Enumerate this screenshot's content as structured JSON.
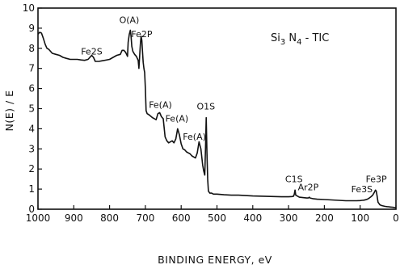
{
  "chart_data": {
    "type": "line",
    "title": "",
    "xlabel": "BINDING ENERGY, eV",
    "ylabel": "N(E) / E",
    "x_reversed": true,
    "xlim": [
      1000,
      0
    ],
    "ylim": [
      0,
      10
    ],
    "x_ticks": [
      1000,
      900,
      800,
      700,
      600,
      500,
      400,
      300,
      200,
      100,
      0
    ],
    "y_ticks": [
      0,
      1,
      2,
      3,
      4,
      5,
      6,
      7,
      8,
      9,
      10
    ],
    "grid": false,
    "sample_label": {
      "main": "Si",
      "sub1": "3",
      "mid": " N",
      "sub2": "4",
      "suffix": " - TIC"
    },
    "annotations": [
      {
        "text": "O(A)",
        "x": 745,
        "y": 9.25
      },
      {
        "text": "Fe2P",
        "x": 710,
        "y": 8.55
      },
      {
        "text": "Fe2S",
        "x": 850,
        "y": 7.7
      },
      {
        "text": "Fe(A)",
        "x": 658,
        "y": 5.05
      },
      {
        "text": "Fe(A)",
        "x": 612,
        "y": 4.35
      },
      {
        "text": "Fe(A)",
        "x": 563,
        "y": 3.45
      },
      {
        "text": "O1S",
        "x": 531,
        "y": 4.95
      },
      {
        "text": "C1S",
        "x": 285,
        "y": 1.35
      },
      {
        "text": "Ar2P",
        "x": 245,
        "y": 0.95
      },
      {
        "text": "Fe3S",
        "x": 95,
        "y": 0.85
      },
      {
        "text": "Fe3P",
        "x": 55,
        "y": 1.35
      }
    ],
    "series": [
      {
        "x": [
          1000,
          995,
          990,
          985,
          980,
          975,
          970,
          965,
          960,
          950,
          940,
          930,
          920,
          910,
          900,
          890,
          880,
          870,
          860,
          855,
          850,
          845,
          840,
          830,
          820,
          800,
          790,
          780,
          770,
          765,
          760,
          755,
          750,
          748,
          745,
          742,
          740,
          738,
          735,
          730,
          725,
          720,
          718,
          716,
          714,
          712,
          710,
          708,
          706,
          704,
          702,
          700,
          698,
          695,
          690,
          680,
          670,
          665,
          660,
          655,
          650,
          645,
          640,
          635,
          630,
          625,
          620,
          615,
          610,
          605,
          600,
          595,
          590,
          585,
          580,
          575,
          570,
          565,
          560,
          555,
          550,
          545,
          540,
          537,
          534,
          532,
          530,
          528,
          526,
          524,
          522,
          520,
          515,
          510,
          500,
          480,
          460,
          440,
          420,
          400,
          380,
          360,
          340,
          320,
          300,
          290,
          286,
          284,
          282,
          280,
          270,
          260,
          250,
          245,
          242,
          240,
          230,
          220,
          200,
          180,
          160,
          140,
          120,
          110,
          100,
          95,
          90,
          85,
          80,
          75,
          70,
          65,
          60,
          57,
          55,
          53,
          50,
          45,
          40,
          35,
          30,
          25,
          20,
          15,
          10,
          5,
          0
        ],
        "y": [
          8.7,
          8.8,
          8.75,
          8.5,
          8.2,
          8.0,
          7.95,
          7.85,
          7.75,
          7.7,
          7.65,
          7.55,
          7.5,
          7.45,
          7.45,
          7.45,
          7.42,
          7.4,
          7.45,
          7.55,
          7.65,
          7.55,
          7.35,
          7.35,
          7.38,
          7.45,
          7.55,
          7.65,
          7.7,
          7.9,
          7.9,
          7.8,
          7.6,
          8.3,
          8.7,
          8.9,
          8.6,
          8.1,
          7.85,
          7.7,
          7.6,
          7.4,
          7.0,
          7.6,
          8.2,
          8.6,
          8.4,
          7.8,
          7.3,
          7.0,
          6.8,
          6.0,
          4.9,
          4.75,
          4.7,
          4.55,
          4.45,
          4.75,
          4.8,
          4.6,
          4.5,
          3.6,
          3.4,
          3.3,
          3.35,
          3.4,
          3.3,
          3.5,
          4.0,
          3.7,
          3.25,
          3.0,
          2.95,
          2.85,
          2.8,
          2.75,
          2.65,
          2.6,
          2.55,
          2.8,
          3.35,
          3.0,
          2.2,
          1.9,
          1.7,
          3.0,
          4.55,
          2.8,
          1.5,
          0.9,
          0.85,
          0.8,
          0.8,
          0.75,
          0.75,
          0.72,
          0.7,
          0.7,
          0.68,
          0.66,
          0.65,
          0.64,
          0.63,
          0.62,
          0.62,
          0.63,
          0.65,
          0.75,
          0.95,
          0.7,
          0.6,
          0.58,
          0.56,
          0.56,
          0.6,
          0.56,
          0.52,
          0.5,
          0.48,
          0.46,
          0.44,
          0.42,
          0.42,
          0.42,
          0.43,
          0.44,
          0.45,
          0.47,
          0.5,
          0.55,
          0.62,
          0.7,
          0.85,
          0.95,
          0.9,
          0.7,
          0.35,
          0.22,
          0.18,
          0.16,
          0.14,
          0.13,
          0.12,
          0.11,
          0.1,
          0.09,
          0.08
        ]
      }
    ]
  }
}
